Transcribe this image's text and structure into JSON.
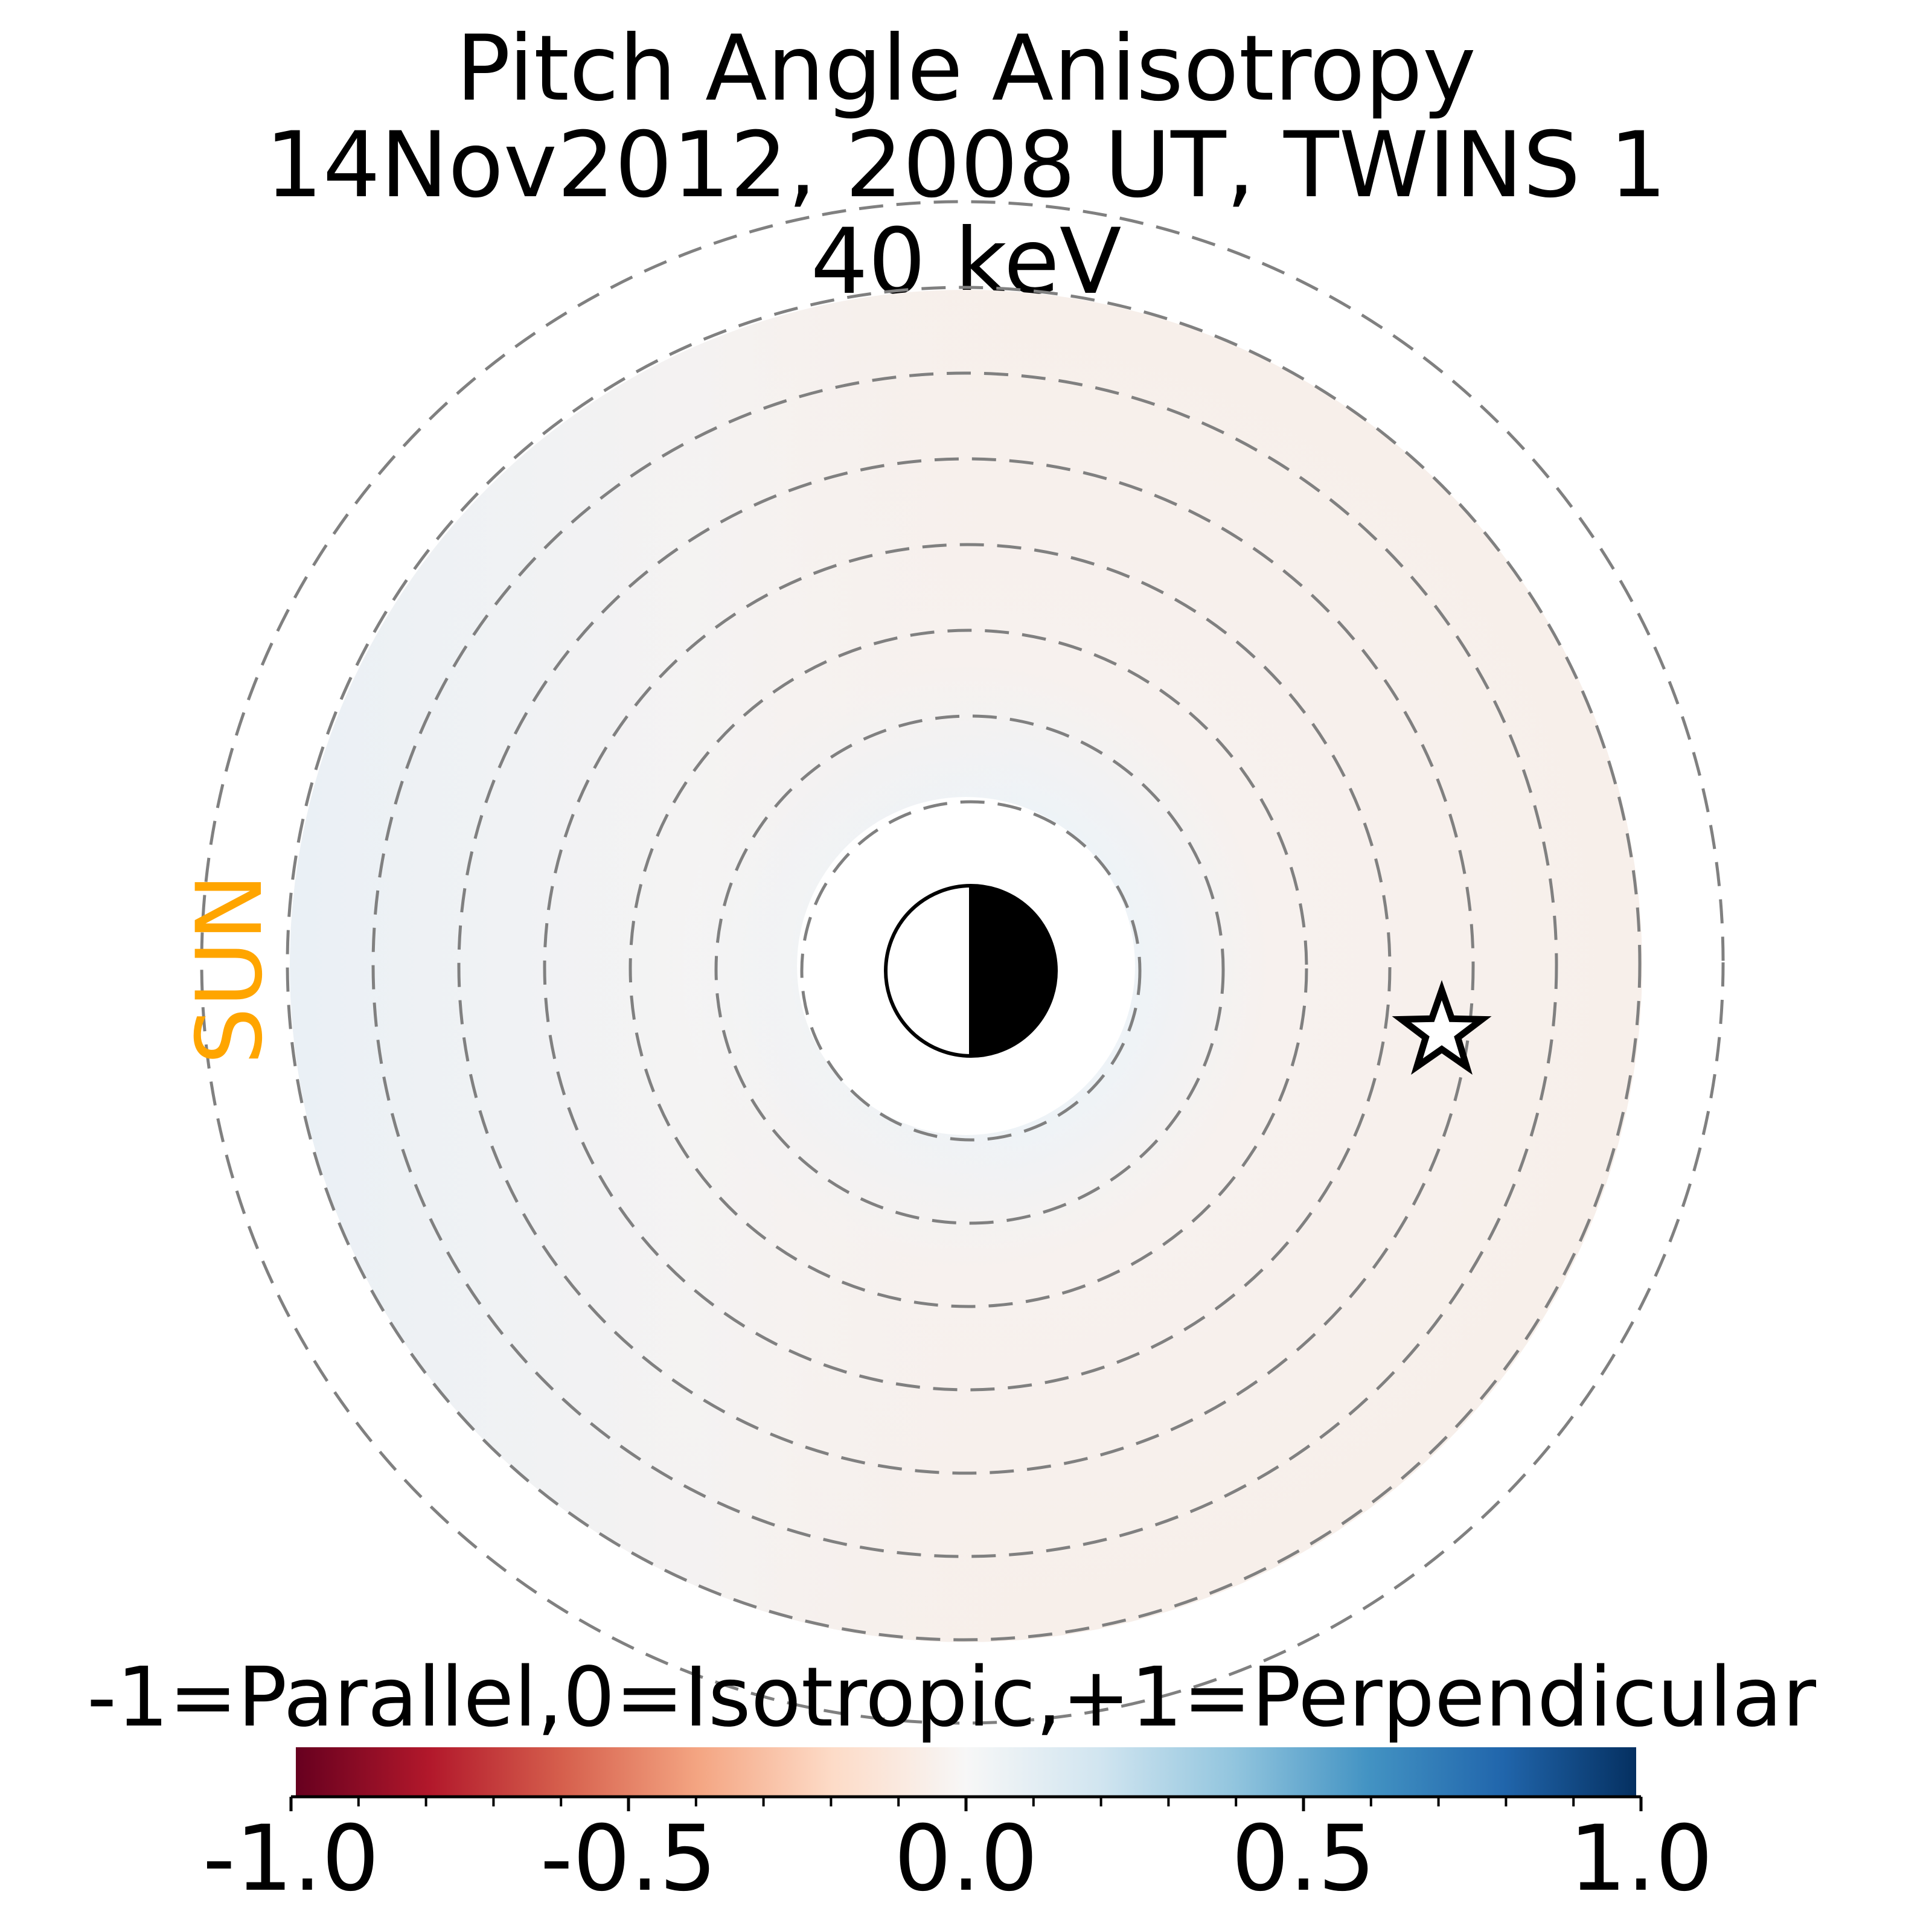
{
  "chart_data": {
    "type": "heatmap",
    "title_lines": [
      "Pitch Angle Anisotropy",
      "14Nov2012, 2008 UT,  TWINS 1",
      "40 keV"
    ],
    "sun_label": "SUN",
    "colorbar": {
      "label": "-1=Parallel,0=Isotropic,+1=Perpendicular",
      "range": [
        -1.0,
        1.0
      ],
      "ticks": [
        -1.0,
        -0.5,
        0.0,
        0.5,
        1.0
      ],
      "tick_labels": [
        "-1.0",
        "-0.5",
        "0.0",
        "0.5",
        "1.0"
      ],
      "colormap": "RdBu",
      "colors": [
        "#67001f",
        "#b2182b",
        "#d6604d",
        "#f4a582",
        "#fddbc7",
        "#f7f7f7",
        "#d1e5f0",
        "#92c5de",
        "#4393c3",
        "#2166ac",
        "#053061"
      ]
    },
    "map": {
      "value_range_shown": [
        -0.05,
        0.05
      ],
      "dayside_tint": "#eef3f8",
      "nightside_tint": "#f8efeb",
      "grid_rings": 8,
      "markers": [
        "earth-day-night-icon",
        "star-marker-icon"
      ]
    }
  }
}
